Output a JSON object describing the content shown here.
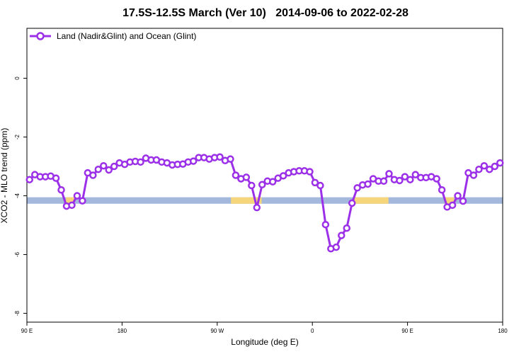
{
  "chart_data": {
    "type": "line",
    "title": "17.5S-12.5S March (Ver 10)   2014-09-06 to 2022-02-28",
    "xlabel": "Longitude (deg E)",
    "ylabel": "XCO2 - MLO trend (ppm)",
    "x_ticks": [
      {
        "x": 90,
        "label": "90 E"
      },
      {
        "x": 180,
        "label": "180"
      },
      {
        "x": 270,
        "label": "90 W"
      },
      {
        "x": 360,
        "label": "0"
      },
      {
        "x": 450,
        "label": "90 E"
      },
      {
        "x": 540,
        "label": "180"
      }
    ],
    "y_ticks": [
      {
        "y": 0,
        "label": "0"
      },
      {
        "y": -2,
        "label": "-2"
      },
      {
        "y": -4,
        "label": "-4"
      },
      {
        "y": -6,
        "label": "-6"
      },
      {
        "y": -8,
        "label": "-8"
      }
    ],
    "xlim": [
      90,
      540
    ],
    "ylim": [
      -8.3,
      1.7
    ],
    "grid": false,
    "legend_position": "top-left",
    "series": [
      {
        "name": "Land (Nadir&Glint) and Ocean (Glint)",
        "color": "#9b30e8",
        "x": [
          92.5,
          97.5,
          102.5,
          107.5,
          112.5,
          117.5,
          122.5,
          127.5,
          132.5,
          137.5,
          142.5,
          147.5,
          152.5,
          157.5,
          162.5,
          167.5,
          172.5,
          177.5,
          182.5,
          187.5,
          192.5,
          197.5,
          202.5,
          207.5,
          212.5,
          217.5,
          222.5,
          227.5,
          232.5,
          237.5,
          242.5,
          247.5,
          252.5,
          257.5,
          262.5,
          267.5,
          272.5,
          277.5,
          282.5,
          287.5,
          292.5,
          297.5,
          302.5,
          307.5,
          312.5,
          317.5,
          322.5,
          327.5,
          332.5,
          337.5,
          342.5,
          347.5,
          352.5,
          357.5,
          362.5,
          367.5,
          372.5,
          377.5,
          382.5,
          387.5,
          392.5,
          397.5,
          402.5,
          407.5,
          412.5,
          417.5,
          422.5,
          427.5,
          432.5,
          437.5,
          442.5,
          447.5,
          452.5,
          457.5,
          462.5,
          467.5,
          472.5,
          477.5,
          482.5,
          487.5,
          492.5,
          497.5,
          502.5,
          507.5,
          512.5,
          517.5,
          522.5,
          527.5,
          532.5,
          537.5
        ],
        "y": [
          -3.45,
          -3.28,
          -3.35,
          -3.35,
          -3.33,
          -3.4,
          -3.8,
          -4.35,
          -4.32,
          -4.0,
          -4.17,
          -3.22,
          -3.3,
          -3.1,
          -2.98,
          -3.12,
          -3.0,
          -2.88,
          -2.93,
          -2.85,
          -2.83,
          -2.85,
          -2.72,
          -2.78,
          -2.78,
          -2.85,
          -2.88,
          -2.95,
          -2.93,
          -2.92,
          -2.85,
          -2.82,
          -2.7,
          -2.7,
          -2.75,
          -2.7,
          -2.68,
          -2.8,
          -2.75,
          -3.3,
          -3.42,
          -3.37,
          -3.65,
          -4.4,
          -3.62,
          -3.5,
          -3.52,
          -3.4,
          -3.32,
          -3.22,
          -3.18,
          -3.15,
          -3.15,
          -3.18,
          -3.55,
          -3.65,
          -4.98,
          -5.8,
          -5.75,
          -5.35,
          -5.1,
          -4.25,
          -3.73,
          -3.63,
          -3.6,
          -3.42,
          -3.5,
          -3.5,
          -3.25,
          -3.45,
          -3.48,
          -3.35,
          -3.45,
          -3.28,
          -3.38,
          -3.38,
          -3.35,
          -3.42,
          -3.8,
          -4.38,
          -4.32,
          -4.0,
          -4.18,
          -3.22,
          -3.3,
          -3.1,
          -2.98,
          -3.1,
          -3.0,
          -2.88
        ]
      }
    ],
    "surface_band": {
      "y_range": [
        -4.05,
        -4.27
      ],
      "ocean_color": "#a3b8dc",
      "land_color": "#f6d67a",
      "land_segments": [
        [
          127,
          135
        ],
        [
          283,
          312
        ],
        [
          399,
          432
        ],
        [
          485,
          494
        ]
      ]
    }
  }
}
